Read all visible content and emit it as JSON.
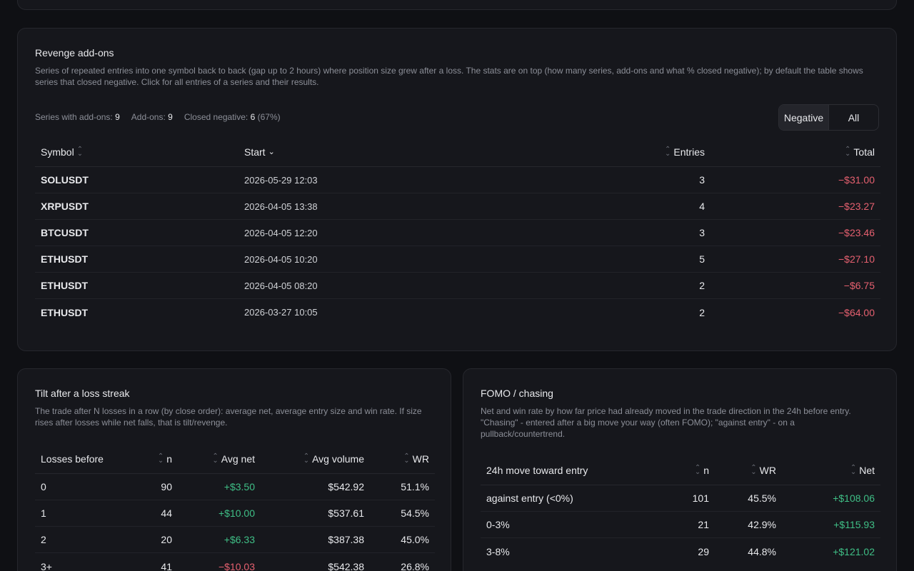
{
  "revenge": {
    "title": "Revenge add-ons",
    "description": "Series of repeated entries into one symbol back to back (gap up to 2 hours) where position size grew after a loss. The stats are on top (how many series, add-ons and what % closed negative); by default the table shows series that closed negative. Click for all entries of a series and their results.",
    "stats": {
      "series_label": "Series with add-ons:",
      "series_value": "9",
      "addons_label": "Add-ons:",
      "addons_value": "9",
      "closed_label": "Closed negative:",
      "closed_value": "6",
      "closed_pct": "(67%)"
    },
    "filter": {
      "negative": "Negative",
      "all": "All",
      "selected": "Negative"
    },
    "columns": {
      "symbol": "Symbol",
      "start": "Start",
      "entries": "Entries",
      "total": "Total"
    },
    "rows": [
      {
        "symbol": "SOLUSDT",
        "start": "2026-05-29 12:03",
        "entries": "3",
        "total": "−$31.00"
      },
      {
        "symbol": "XRPUSDT",
        "start": "2026-04-05 13:38",
        "entries": "4",
        "total": "−$23.27"
      },
      {
        "symbol": "BTCUSDT",
        "start": "2026-04-05 12:20",
        "entries": "3",
        "total": "−$23.46"
      },
      {
        "symbol": "ETHUSDT",
        "start": "2026-04-05 10:20",
        "entries": "5",
        "total": "−$27.10"
      },
      {
        "symbol": "ETHUSDT",
        "start": "2026-04-05 08:20",
        "entries": "2",
        "total": "−$6.75"
      },
      {
        "symbol": "ETHUSDT",
        "start": "2026-03-27 10:05",
        "entries": "2",
        "total": "−$64.00"
      }
    ]
  },
  "tilt": {
    "title": "Tilt after a loss streak",
    "description": "The trade after N losses in a row (by close order): average net, average entry size and win rate. If size rises after losses while net falls, that is tilt/revenge.",
    "columns": {
      "losses": "Losses before",
      "n": "n",
      "avg_net": "Avg net",
      "avg_volume": "Avg volume",
      "wr": "WR"
    },
    "rows": [
      {
        "losses": "0",
        "n": "90",
        "avg_net": "+$3.50",
        "avg_volume": "$542.92",
        "wr": "51.1%"
      },
      {
        "losses": "1",
        "n": "44",
        "avg_net": "+$10.00",
        "avg_volume": "$537.61",
        "wr": "54.5%"
      },
      {
        "losses": "2",
        "n": "20",
        "avg_net": "+$6.33",
        "avg_volume": "$387.38",
        "wr": "45.0%"
      },
      {
        "losses": "3+",
        "n": "41",
        "avg_net": "−$10.03",
        "avg_volume": "$542.38",
        "wr": "26.8%"
      }
    ]
  },
  "fomo": {
    "title": "FOMO / chasing",
    "description": "Net and win rate by how far price had already moved in the trade direction in the 24h before entry. \"Chasing\" - entered after a big move your way (often FOMO); \"against entry\" - on a pullback/countertrend.",
    "columns": {
      "move": "24h move toward entry",
      "n": "n",
      "wr": "WR",
      "net": "Net"
    },
    "rows": [
      {
        "move": "against entry (<0%)",
        "n": "101",
        "wr": "45.5%",
        "net": "+$108.06"
      },
      {
        "move": "0-3%",
        "n": "21",
        "wr": "42.9%",
        "net": "+$115.93"
      },
      {
        "move": "3-8%",
        "n": "29",
        "wr": "44.8%",
        "net": "+$121.02"
      }
    ]
  },
  "colors": {
    "negative": "#e5606f",
    "positive": "#3fbf86",
    "background": "#0f1014",
    "card": "#16171c"
  }
}
